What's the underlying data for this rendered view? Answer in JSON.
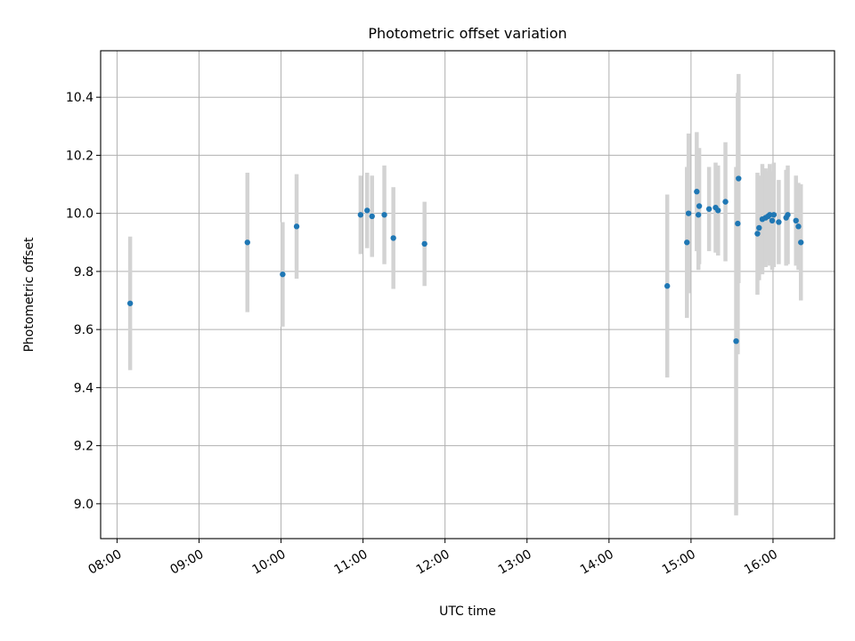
{
  "chart_data": {
    "type": "scatter",
    "title": "Photometric offset variation",
    "xlabel": "UTC time",
    "ylabel": "Photometric offset",
    "x_unit": "hours UTC",
    "xlim": [
      7.8,
      16.75
    ],
    "ylim": [
      8.88,
      10.56
    ],
    "grid": true,
    "colors": {
      "point": "#1f77b4",
      "errorbar": "#d3d3d3",
      "grid": "#b0b0b0"
    },
    "x_ticks": [
      {
        "value": 8,
        "label": "08:00"
      },
      {
        "value": 9,
        "label": "09:00"
      },
      {
        "value": 10,
        "label": "10:00"
      },
      {
        "value": 11,
        "label": "11:00"
      },
      {
        "value": 12,
        "label": "12:00"
      },
      {
        "value": 13,
        "label": "13:00"
      },
      {
        "value": 14,
        "label": "14:00"
      },
      {
        "value": 15,
        "label": "15:00"
      },
      {
        "value": 16,
        "label": "16:00"
      }
    ],
    "y_ticks": [
      {
        "value": 9.0,
        "label": "9.0"
      },
      {
        "value": 9.2,
        "label": "9.2"
      },
      {
        "value": 9.4,
        "label": "9.4"
      },
      {
        "value": 9.6,
        "label": "9.6"
      },
      {
        "value": 9.8,
        "label": "9.8"
      },
      {
        "value": 10.0,
        "label": "10.0"
      },
      {
        "value": 10.2,
        "label": "10.2"
      },
      {
        "value": 10.4,
        "label": "10.4"
      }
    ],
    "points": [
      {
        "x": 8.16,
        "y": 9.69,
        "err": 0.23
      },
      {
        "x": 9.59,
        "y": 9.9,
        "err": 0.24
      },
      {
        "x": 10.02,
        "y": 9.79,
        "err": 0.18
      },
      {
        "x": 10.19,
        "y": 9.955,
        "err": 0.18
      },
      {
        "x": 10.97,
        "y": 9.995,
        "err": 0.135
      },
      {
        "x": 11.05,
        "y": 10.01,
        "err": 0.13
      },
      {
        "x": 11.11,
        "y": 9.99,
        "err": 0.14
      },
      {
        "x": 11.26,
        "y": 9.995,
        "err": 0.17
      },
      {
        "x": 11.37,
        "y": 9.915,
        "err": 0.175
      },
      {
        "x": 11.75,
        "y": 9.895,
        "err": 0.145
      },
      {
        "x": 14.71,
        "y": 9.75,
        "err": 0.315
      },
      {
        "x": 14.95,
        "y": 9.9,
        "err": 0.26
      },
      {
        "x": 14.97,
        "y": 10.0,
        "err": 0.275
      },
      {
        "x": 15.07,
        "y": 10.075,
        "err": 0.205
      },
      {
        "x": 15.09,
        "y": 9.995,
        "err": 0.19
      },
      {
        "x": 15.1,
        "y": 10.025,
        "err": 0.2
      },
      {
        "x": 15.22,
        "y": 10.015,
        "err": 0.145
      },
      {
        "x": 15.3,
        "y": 10.02,
        "err": 0.155
      },
      {
        "x": 15.33,
        "y": 10.01,
        "err": 0.155
      },
      {
        "x": 15.42,
        "y": 10.04,
        "err": 0.205
      },
      {
        "x": 15.55,
        "y": 9.56,
        "err": 0.6
      },
      {
        "x": 15.57,
        "y": 9.965,
        "err": 0.45
      },
      {
        "x": 15.58,
        "y": 10.12,
        "err": 0.36
      },
      {
        "x": 15.81,
        "y": 9.93,
        "err": 0.21
      },
      {
        "x": 15.83,
        "y": 9.95,
        "err": 0.18
      },
      {
        "x": 15.87,
        "y": 9.98,
        "err": 0.19
      },
      {
        "x": 15.91,
        "y": 9.985,
        "err": 0.17
      },
      {
        "x": 15.94,
        "y": 9.99,
        "err": 0.155
      },
      {
        "x": 15.96,
        "y": 9.995,
        "err": 0.175
      },
      {
        "x": 15.99,
        "y": 9.975,
        "err": 0.17
      },
      {
        "x": 16.01,
        "y": 9.995,
        "err": 0.18
      },
      {
        "x": 16.07,
        "y": 9.97,
        "err": 0.145
      },
      {
        "x": 16.16,
        "y": 9.985,
        "err": 0.165
      },
      {
        "x": 16.18,
        "y": 9.995,
        "err": 0.17
      },
      {
        "x": 16.28,
        "y": 9.975,
        "err": 0.155
      },
      {
        "x": 16.31,
        "y": 9.955,
        "err": 0.15
      },
      {
        "x": 16.34,
        "y": 9.9,
        "err": 0.2
      }
    ]
  }
}
